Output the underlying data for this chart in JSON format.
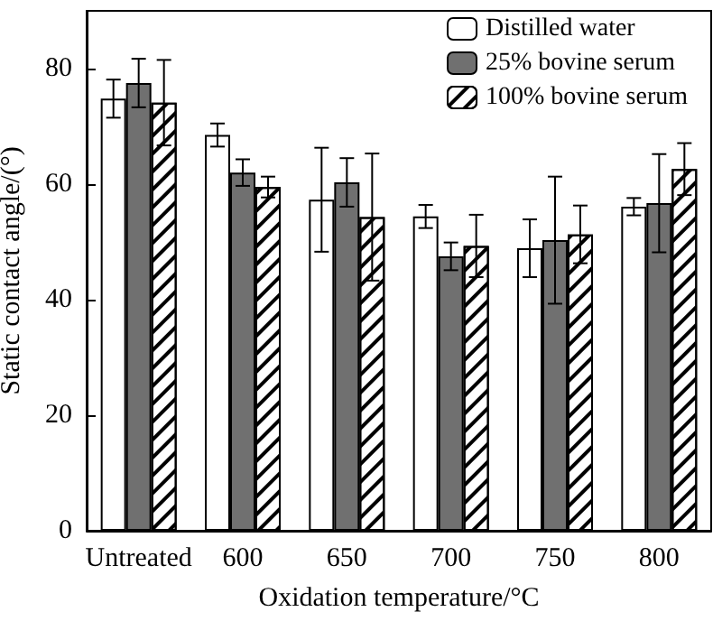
{
  "chart_data": {
    "type": "bar",
    "xlabel": "Oxidation temperature/°C",
    "ylabel": "Static contact angle/(°)",
    "categories": [
      "Untreated",
      "600",
      "650",
      "700",
      "750",
      "800"
    ],
    "series": [
      {
        "name": "Distilled water",
        "color": "#ffffff",
        "values": [
          74.8,
          68.5,
          57.3,
          54.4,
          48.9,
          56.1
        ],
        "errors": [
          3.3,
          2,
          9,
          2,
          5,
          1.5
        ]
      },
      {
        "name": "25% bovine serum",
        "color": "#707070",
        "values": [
          77.5,
          62,
          60.3,
          47.5,
          50.3,
          56.7
        ],
        "errors": [
          4.2,
          2.3,
          4.2,
          2.4,
          11,
          8.5
        ]
      },
      {
        "name": "100% bovine serum",
        "color": "#ffffff",
        "values": [
          74.1,
          59.5,
          54.3,
          49.3,
          51.3,
          62.6
        ],
        "errors": [
          7.4,
          1.8,
          11,
          5.4,
          5,
          4.5
        ]
      }
    ],
    "ylim": [
      0,
      90
    ],
    "yticks": [
      0,
      20,
      40,
      60,
      80
    ],
    "grid": false,
    "legend": "top right"
  }
}
